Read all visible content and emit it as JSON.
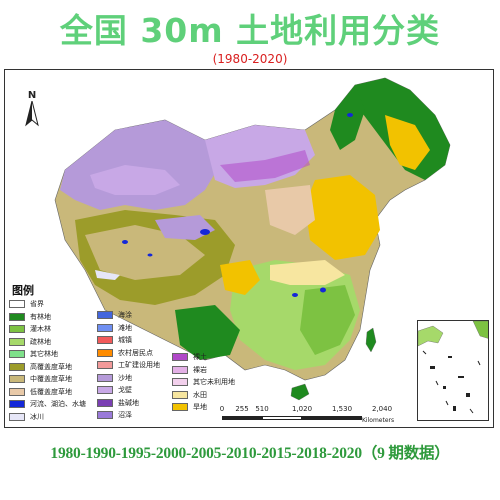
{
  "title": "全国 30m 土地利用分类",
  "subtitle": "(1980-2020)",
  "footer": "1980-1990-1995-2000-2005-2010-2015-2018-2020（9 期数据）",
  "north_arrow": "N",
  "legend": {
    "title": "图例",
    "items": [
      {
        "label": "省界",
        "color": "#ffffff"
      },
      {
        "label": "有林地",
        "color": "#1f8a1f"
      },
      {
        "label": "灌木林",
        "color": "#7dc242"
      },
      {
        "label": "疏林地",
        "color": "#a6d96a"
      },
      {
        "label": "其它林地",
        "color": "#7ee08a"
      },
      {
        "label": "高覆盖度草地",
        "color": "#9c9c2a"
      },
      {
        "label": "中覆盖度草地",
        "color": "#c9b87a"
      },
      {
        "label": "低覆盖度草地",
        "color": "#e8c9a8"
      },
      {
        "label": "河流、湖泊、水塘",
        "color": "#1428d8"
      },
      {
        "label": "冰川",
        "color": "#e6e6f7"
      },
      {
        "label": "海涂",
        "color": "#4466dd"
      },
      {
        "label": "滩地",
        "color": "#6f8ff2"
      },
      {
        "label": "城镇",
        "color": "#f25a5a"
      },
      {
        "label": "农村居民点",
        "color": "#ff8c00"
      },
      {
        "label": "工矿建设用地",
        "color": "#f29a9a"
      },
      {
        "label": "沙地",
        "color": "#b59ad9"
      },
      {
        "label": "戈壁",
        "color": "#c8a8e6"
      },
      {
        "label": "盐碱地",
        "color": "#7a3fb3"
      },
      {
        "label": "沼泽",
        "color": "#9a7ad9"
      },
      {
        "label": "裸土",
        "color": "#b048c8"
      },
      {
        "label": "裸岩",
        "color": "#e3b0e6"
      },
      {
        "label": "其它未利用地",
        "color": "#f2d0ec"
      },
      {
        "label": "水田",
        "color": "#f7e6a0"
      },
      {
        "label": "旱地",
        "color": "#f2c200"
      }
    ]
  },
  "scale_bar": {
    "labels": [
      "0",
      "255",
      "510",
      "1,020",
      "1,530",
      "2,040"
    ],
    "units": "Kilometers"
  }
}
